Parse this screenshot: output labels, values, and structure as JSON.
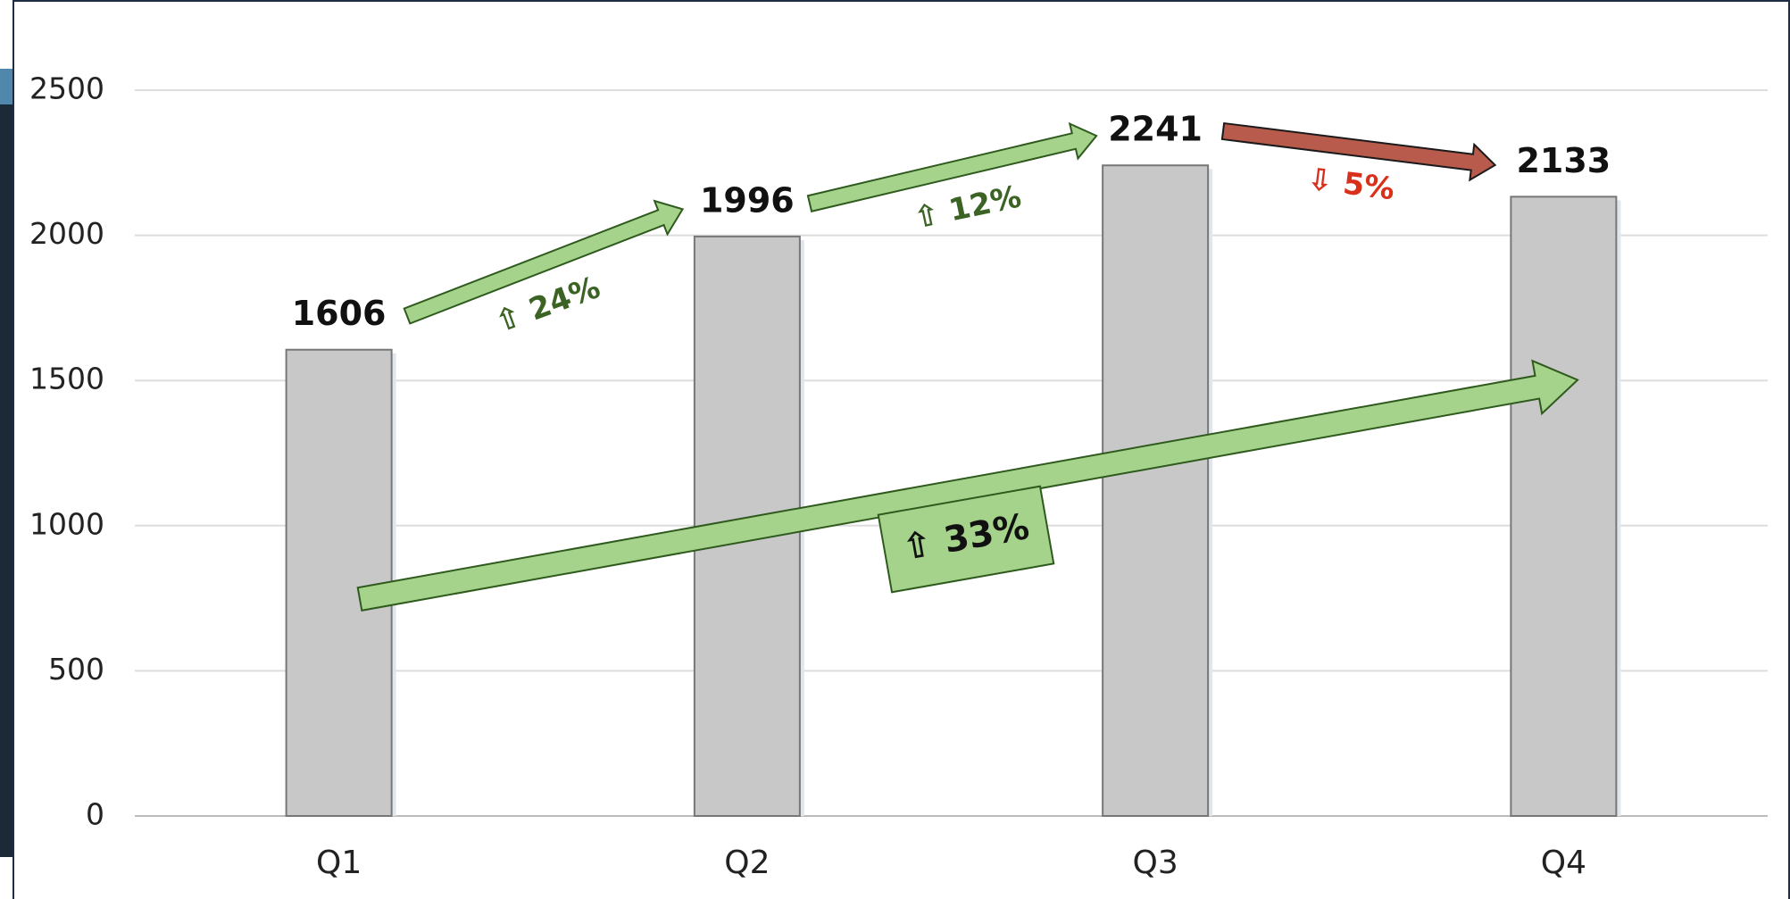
{
  "chart_data": {
    "type": "bar",
    "categories": [
      "Q1",
      "Q2",
      "Q3",
      "Q4"
    ],
    "values": [
      1606,
      1996,
      2241,
      2133
    ],
    "color": "#c8c8c8",
    "ylim": [
      0,
      2500
    ],
    "yticks": [
      0,
      500,
      1000,
      1500,
      2000,
      2500
    ],
    "grid": true,
    "annotations": [
      "⇧ 24%",
      "⇧ 12%",
      "⇩ 5%",
      "⇧ 33%"
    ]
  }
}
